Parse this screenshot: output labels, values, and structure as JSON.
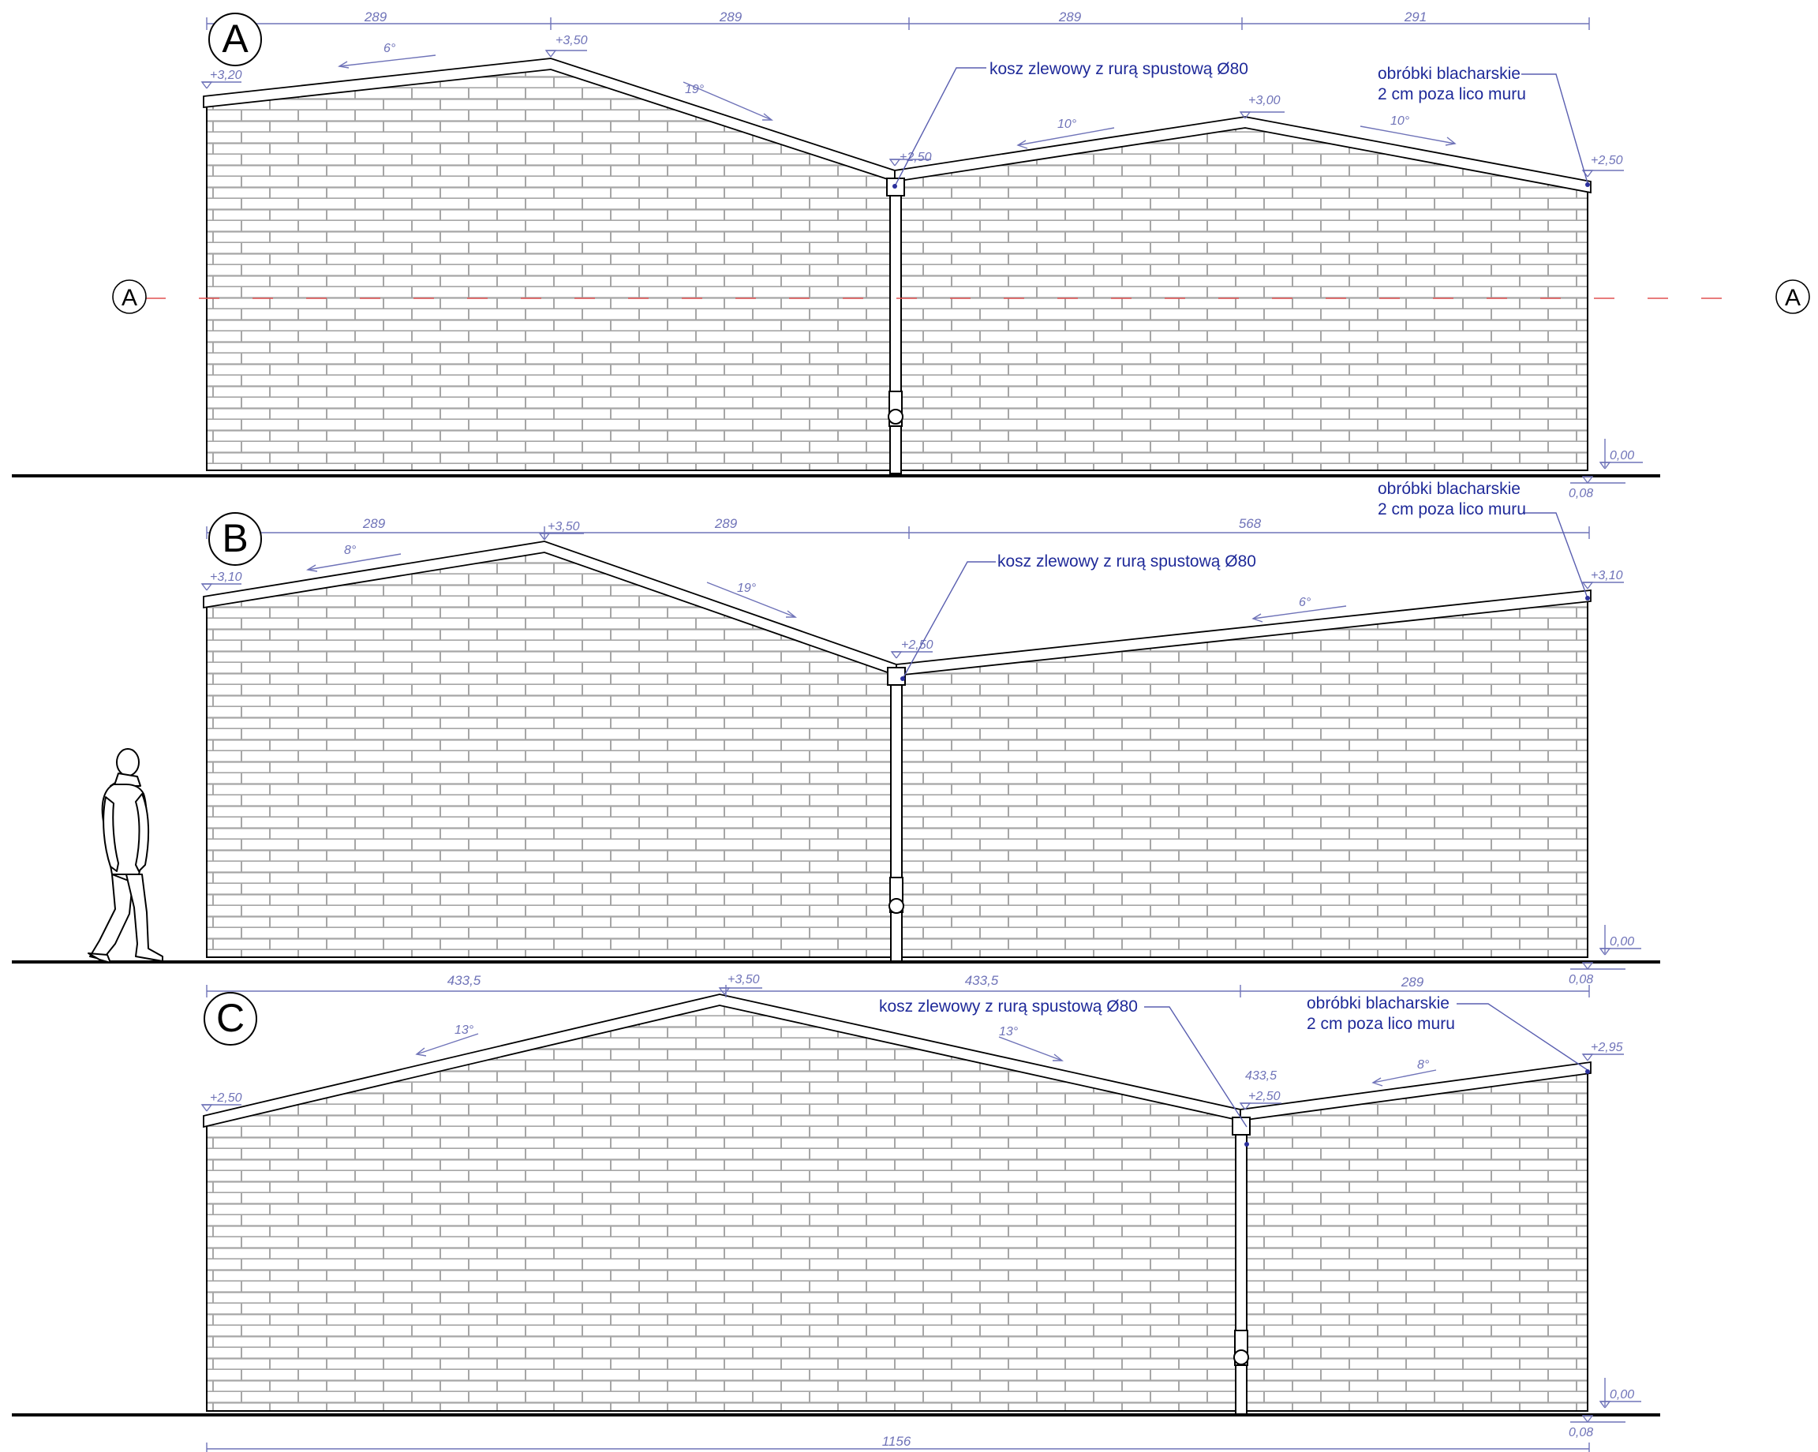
{
  "colors": {
    "ink": "#000000",
    "brick": "#9a9a9a",
    "annotation": "#2a2f9c",
    "dimension": "#6f73b8",
    "section_line": "#e05050"
  },
  "section_marker": {
    "left": "A",
    "right": "A"
  },
  "elevations": [
    {
      "letter": "A",
      "dims_top": [
        "289",
        "289",
        "289",
        "291"
      ],
      "levels": {
        "left": "+3,20",
        "peak": "+3,50",
        "drain": "+2,50",
        "peak2": "+3,00",
        "right": "+2,50",
        "ground": "0,00",
        "below": "0,08"
      },
      "slopes": [
        "6°",
        "19°",
        "10°",
        "10°"
      ],
      "note_drain": "kosz zlewowy z rurą spustową Ø80",
      "note_flashing": [
        "obróbki blacharskie",
        "2 cm poza lico muru"
      ]
    },
    {
      "letter": "B",
      "dims_top": [
        "289",
        "289",
        "568"
      ],
      "levels": {
        "left": "+3,10",
        "peak": "+3,50",
        "drain": "+2,50",
        "right": "+3,10",
        "ground": "0,00",
        "below": "0,08"
      },
      "slopes": [
        "8°",
        "19°",
        "6°"
      ],
      "note_drain": "kosz zlewowy z rurą spustową Ø80",
      "note_flashing": [
        "obróbki blacharskie",
        "2 cm poza lico muru"
      ]
    },
    {
      "letter": "C",
      "dims_top": [
        "433,5",
        "433,5",
        "289"
      ],
      "dim_extra": "433,5",
      "levels": {
        "left": "+2,50",
        "peak": "+3,50",
        "drain": "+2,50",
        "right": "+2,95",
        "ground": "0,00",
        "below": "0,08"
      },
      "slopes": [
        "13°",
        "13°",
        "8°"
      ],
      "note_drain": "kosz zlewowy z rurą spustową Ø80",
      "note_flashing": [
        "obróbki blacharskie",
        "2 cm poza lico muru"
      ]
    }
  ],
  "overall_dim": "1156"
}
